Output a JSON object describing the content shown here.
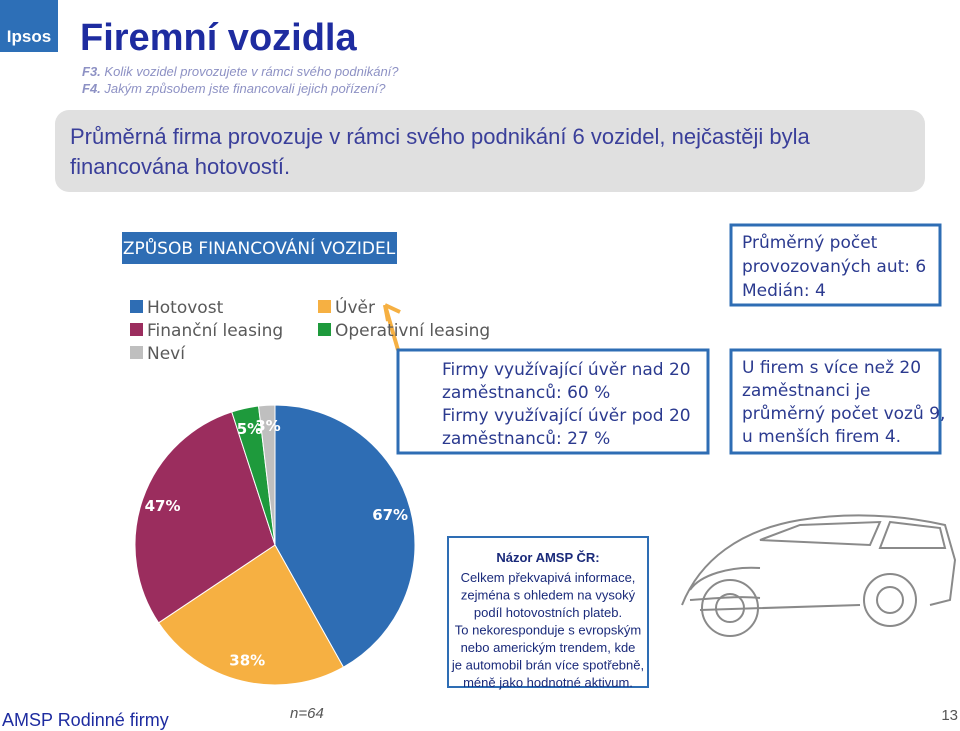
{
  "header": {
    "logo": "Ipsos",
    "title": "Firemní vozidla",
    "questions": [
      {
        "code": "F3.",
        "text": "Kolik vozidel provozujete v rámci svého podnikání?"
      },
      {
        "code": "F4.",
        "text": "Jakým způsobem jste financovali jejich pořízení?"
      }
    ]
  },
  "summary": [
    "Průměrná firma provozuje v rámci svého podnikání 6 vozidel, nejčastěji byla",
    "financována hotovostí."
  ],
  "chart_data": {
    "type": "pie",
    "title": "ZPŮSOB FINANCOVÁNÍ VOZIDEL",
    "categories": [
      "Hotovost",
      "Úvěr",
      "Finanční leasing",
      "Operativní leasing",
      "Neví"
    ],
    "values": [
      67,
      38,
      47,
      5,
      3
    ],
    "value_labels": [
      "67%",
      "38%",
      "47%",
      "5%",
      "3%"
    ],
    "colors": [
      "#2e6db4",
      "#f6b042",
      "#9b2d5e",
      "#1e9a3c",
      "#bfbfbf"
    ]
  },
  "callouts": {
    "loan": [
      "Firmy využívající úvěr nad 20",
      "zaměstnanců:  60 %",
      "Firmy využívající úvěr pod 20",
      "zaměstnanců: 27 %"
    ],
    "average": [
      "Průměrný počet",
      "provozovaných aut: 6",
      "Medián: 4"
    ],
    "size": [
      "U firem s více než 20",
      "zaměstnanci je",
      "průměrný počet vozů 9,",
      "u menších firem 4."
    ]
  },
  "note": {
    "title": "Názor AMSP ČR:",
    "lines": [
      "Celkem překvapivá informace,",
      "zejména s ohledem na vysoký",
      "podíl hotovostních plateb.",
      "To nekoresponduje s evropským",
      "nebo americkým trendem, kde",
      "je automobil brán více spotřebně,",
      "méně jako hodnotné aktivum."
    ]
  },
  "footer": {
    "brand": "AMSP Rodinné firmy",
    "sample": "n=64",
    "page": "13"
  }
}
